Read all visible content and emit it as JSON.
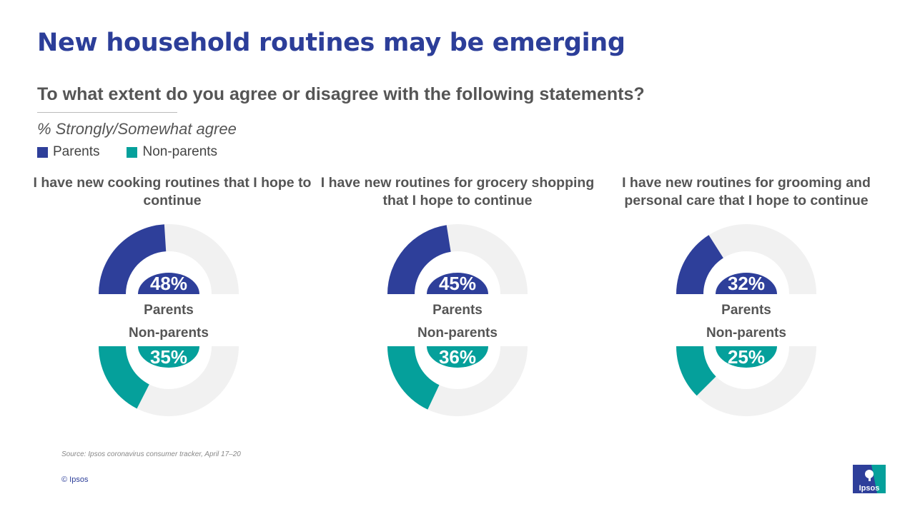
{
  "title": "New household routines may be emerging",
  "question": "To what extent do you agree or disagree with the following statements?",
  "measure": "% Strongly/Somewhat agree",
  "legend": {
    "parents": "Parents",
    "non_parents": "Non-parents"
  },
  "colors": {
    "parents": "#2e3f9a",
    "non_parents": "#05a09b",
    "track": "#f1f1f1",
    "title": "#2c3e99"
  },
  "chart_data": [
    {
      "type": "donut",
      "statement": "I have new cooking routines that I hope to continue",
      "series": [
        {
          "name": "Parents",
          "value": 48,
          "label": "48%"
        },
        {
          "name": "Non-parents",
          "value": 35,
          "label": "35%"
        }
      ]
    },
    {
      "type": "donut",
      "statement": "I have new routines for grocery shopping that I hope to continue",
      "series": [
        {
          "name": "Parents",
          "value": 45,
          "label": "45%"
        },
        {
          "name": "Non-parents",
          "value": 36,
          "label": "36%"
        }
      ]
    },
    {
      "type": "donut",
      "statement": "I have new routines for grooming and personal care that I hope to continue",
      "series": [
        {
          "name": "Parents",
          "value": 32,
          "label": "32%"
        },
        {
          "name": "Non-parents",
          "value": 25,
          "label": "25%"
        }
      ]
    }
  ],
  "source": "Source: Ipsos coronavirus consumer tracker, April 17–20",
  "copyright": "© Ipsos",
  "logo_text": "Ipsos"
}
